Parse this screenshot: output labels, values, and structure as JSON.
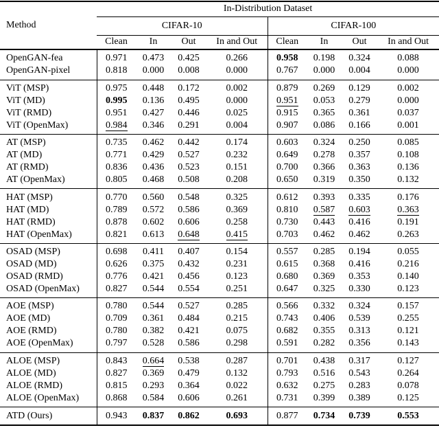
{
  "colors": {
    "text": "#000000",
    "background": "#ffffff",
    "rule": "#000000"
  },
  "table": {
    "title": "In-Distribution Dataset",
    "method_header": "Method",
    "groups": [
      {
        "label": "CIFAR-10",
        "cols": [
          "Clean",
          "In",
          "Out",
          "In and Out"
        ]
      },
      {
        "label": "CIFAR-100",
        "cols": [
          "Clean",
          "In",
          "Out",
          "In and Out"
        ]
      }
    ],
    "sections": [
      {
        "rows": [
          {
            "method": "OpenGAN-fea",
            "values": [
              "0.971",
              "0.473",
              "0.425",
              "0.266",
              "0.958",
              "0.198",
              "0.324",
              "0.088"
            ],
            "bold": [
              4
            ],
            "underline": []
          },
          {
            "method": "OpenGAN-pixel",
            "values": [
              "0.818",
              "0.000",
              "0.008",
              "0.000",
              "0.767",
              "0.000",
              "0.004",
              "0.000"
            ],
            "bold": [],
            "underline": []
          }
        ]
      },
      {
        "rows": [
          {
            "method": "ViT (MSP)",
            "values": [
              "0.975",
              "0.448",
              "0.172",
              "0.002",
              "0.879",
              "0.269",
              "0.129",
              "0.002"
            ],
            "bold": [],
            "underline": []
          },
          {
            "method": "ViT (MD)",
            "values": [
              "0.995",
              "0.136",
              "0.495",
              "0.000",
              "0.951",
              "0.053",
              "0.279",
              "0.000"
            ],
            "bold": [
              0
            ],
            "underline": [
              4
            ]
          },
          {
            "method": "ViT (RMD)",
            "values": [
              "0.951",
              "0.427",
              "0.446",
              "0.025",
              "0.915",
              "0.365",
              "0.361",
              "0.037"
            ],
            "bold": [],
            "underline": []
          },
          {
            "method": "ViT (OpenMax)",
            "values": [
              "0.984",
              "0.346",
              "0.291",
              "0.004",
              "0.907",
              "0.086",
              "0.166",
              "0.001"
            ],
            "bold": [],
            "underline": [
              0
            ]
          }
        ]
      },
      {
        "rows": [
          {
            "method": "AT (MSP)",
            "values": [
              "0.735",
              "0.462",
              "0.442",
              "0.174",
              "0.603",
              "0.324",
              "0.250",
              "0.085"
            ],
            "bold": [],
            "underline": []
          },
          {
            "method": "AT (MD)",
            "values": [
              "0.771",
              "0.429",
              "0.527",
              "0.232",
              "0.649",
              "0.278",
              "0.357",
              "0.108"
            ],
            "bold": [],
            "underline": []
          },
          {
            "method": "AT (RMD)",
            "values": [
              "0.836",
              "0.436",
              "0.523",
              "0.151",
              "0.700",
              "0.366",
              "0.363",
              "0.136"
            ],
            "bold": [],
            "underline": []
          },
          {
            "method": "AT (OpenMax)",
            "values": [
              "0.805",
              "0.468",
              "0.508",
              "0.208",
              "0.650",
              "0.319",
              "0.350",
              "0.132"
            ],
            "bold": [],
            "underline": []
          }
        ]
      },
      {
        "rows": [
          {
            "method": "HAT (MSP)",
            "values": [
              "0.770",
              "0.560",
              "0.548",
              "0.325",
              "0.612",
              "0.393",
              "0.335",
              "0.176"
            ],
            "bold": [],
            "underline": []
          },
          {
            "method": "HAT (MD)",
            "values": [
              "0.789",
              "0.572",
              "0.586",
              "0.369",
              "0.810",
              "0.587",
              "0.603",
              "0.363"
            ],
            "bold": [],
            "underline": [
              5,
              6,
              7
            ]
          },
          {
            "method": "HAT (RMD)",
            "values": [
              "0.878",
              "0.602",
              "0.606",
              "0.258",
              "0.730",
              "0.443",
              "0.416",
              "0.191"
            ],
            "bold": [],
            "underline": []
          },
          {
            "method": "HAT (OpenMax)",
            "values": [
              "0.821",
              "0.613",
              "0.648",
              "0.415",
              "0.703",
              "0.462",
              "0.462",
              "0.263"
            ],
            "bold": [],
            "underline": [
              2,
              3
            ]
          }
        ]
      },
      {
        "rows": [
          {
            "method": "OSAD (MSP)",
            "values": [
              "0.698",
              "0.411",
              "0.407",
              "0.154",
              "0.557",
              "0.285",
              "0.194",
              "0.055"
            ],
            "bold": [],
            "underline": []
          },
          {
            "method": "OSAD (MD)",
            "values": [
              "0.626",
              "0.375",
              "0.432",
              "0.231",
              "0.615",
              "0.368",
              "0.416",
              "0.216"
            ],
            "bold": [],
            "underline": []
          },
          {
            "method": "OSAD (RMD)",
            "values": [
              "0.776",
              "0.421",
              "0.456",
              "0.123",
              "0.680",
              "0.369",
              "0.353",
              "0.140"
            ],
            "bold": [],
            "underline": []
          },
          {
            "method": "OSAD (OpenMax)",
            "values": [
              "0.827",
              "0.544",
              "0.554",
              "0.251",
              "0.647",
              "0.325",
              "0.330",
              "0.123"
            ],
            "bold": [],
            "underline": []
          }
        ]
      },
      {
        "rows": [
          {
            "method": "AOE (MSP)",
            "values": [
              "0.780",
              "0.544",
              "0.527",
              "0.285",
              "0.566",
              "0.332",
              "0.324",
              "0.157"
            ],
            "bold": [],
            "underline": []
          },
          {
            "method": "AOE (MD)",
            "values": [
              "0.709",
              "0.361",
              "0.484",
              "0.215",
              "0.743",
              "0.406",
              "0.539",
              "0.255"
            ],
            "bold": [],
            "underline": []
          },
          {
            "method": "AOE (RMD)",
            "values": [
              "0.780",
              "0.382",
              "0.421",
              "0.075",
              "0.682",
              "0.355",
              "0.313",
              "0.121"
            ],
            "bold": [],
            "underline": []
          },
          {
            "method": "AOE (OpenMax)",
            "values": [
              "0.797",
              "0.528",
              "0.586",
              "0.298",
              "0.591",
              "0.282",
              "0.356",
              "0.143"
            ],
            "bold": [],
            "underline": []
          }
        ]
      },
      {
        "rows": [
          {
            "method": "ALOE (MSP)",
            "values": [
              "0.843",
              "0.664",
              "0.538",
              "0.287",
              "0.701",
              "0.438",
              "0.317",
              "0.127"
            ],
            "bold": [],
            "underline": [
              1
            ]
          },
          {
            "method": "ALOE (MD)",
            "values": [
              "0.827",
              "0.369",
              "0.479",
              "0.132",
              "0.793",
              "0.516",
              "0.543",
              "0.264"
            ],
            "bold": [],
            "underline": []
          },
          {
            "method": "ALOE (RMD)",
            "values": [
              "0.815",
              "0.293",
              "0.364",
              "0.022",
              "0.632",
              "0.275",
              "0.283",
              "0.078"
            ],
            "bold": [],
            "underline": []
          },
          {
            "method": "ALOE (OpenMax)",
            "values": [
              "0.868",
              "0.584",
              "0.606",
              "0.261",
              "0.731",
              "0.399",
              "0.389",
              "0.125"
            ],
            "bold": [],
            "underline": []
          }
        ]
      },
      {
        "rows": [
          {
            "method": "ATD (Ours)",
            "values": [
              "0.943",
              "0.837",
              "0.862",
              "0.693",
              "0.877",
              "0.734",
              "0.739",
              "0.553"
            ],
            "bold": [
              1,
              2,
              3,
              5,
              6,
              7
            ],
            "underline": []
          }
        ]
      }
    ]
  }
}
